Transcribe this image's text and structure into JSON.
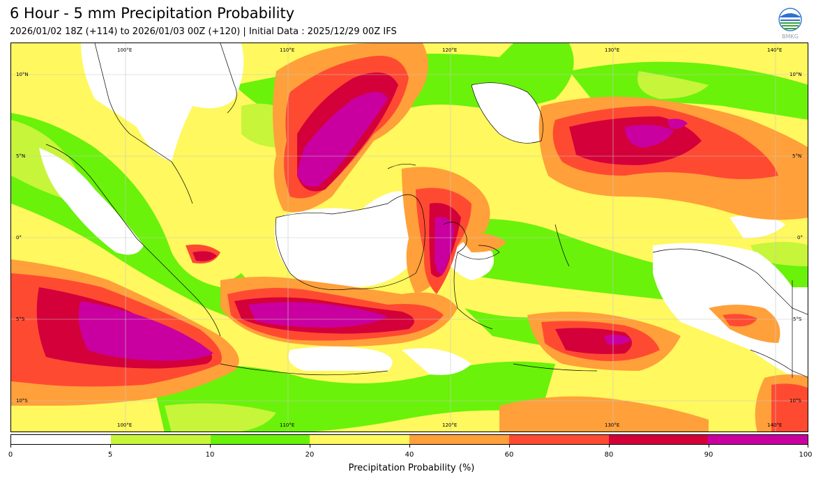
{
  "title": "6 Hour - 5 mm Precipitation Probability",
  "subtitle": "2026/01/02 18Z (+114) to 2026/01/03 00Z (+120) | Initial Data : 2025/12/29 00Z IFS",
  "logo_text": "BMKG",
  "map": {
    "lon_labels": [
      "100°E",
      "110°E",
      "120°E",
      "130°E",
      "140°E"
    ],
    "lat_labels_left": [
      "10°N",
      "5°N",
      "0°",
      "5°S",
      "10°S"
    ],
    "lat_labels_right": [
      "10°N",
      "5°N",
      "0°",
      "5°S",
      "10°S"
    ],
    "colors": {
      "white": "#ffffff",
      "lime": "#c6f53a",
      "green": "#6af20a",
      "yellow": "#fff85e",
      "orange": "#ffa03a",
      "red": "#ff4a32",
      "crimson": "#d4003a",
      "magenta": "#c9009f"
    }
  },
  "colorbar": {
    "ticks": [
      "0",
      "5",
      "10",
      "20",
      "40",
      "60",
      "80",
      "90",
      "100"
    ],
    "colors": [
      "#ffffff",
      "#c6f53a",
      "#6af20a",
      "#fff85e",
      "#ffa03a",
      "#ff4a32",
      "#d4003a",
      "#c9009f"
    ],
    "label": "Precipitation Probability (%)"
  }
}
